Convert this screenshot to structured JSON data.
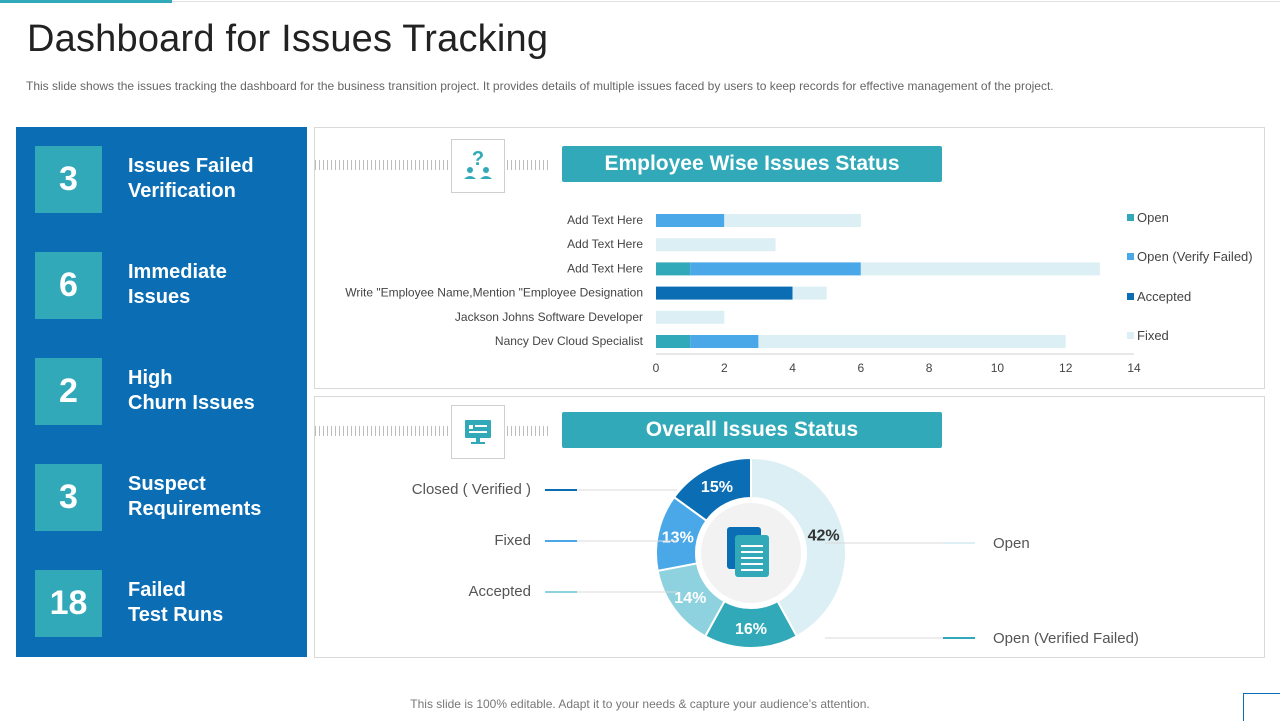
{
  "header": {
    "title": "Dashboard for Issues Tracking",
    "description": "This slide shows the issues tracking the dashboard for the business transition project. It provides details of multiple issues faced by users to keep records for effective  management  of the project."
  },
  "kpis": [
    {
      "value": "3",
      "label": "Issues Failed\nVerification"
    },
    {
      "value": "6",
      "label": "Immediate\nIssues"
    },
    {
      "value": "2",
      "label": "High\nChurn Issues"
    },
    {
      "value": "3",
      "label": "Suspect\nRequirements"
    },
    {
      "value": "18",
      "label": "Failed\nTest Runs"
    }
  ],
  "employee_card": {
    "title": "Employee Wise Issues Status",
    "icon": "question-people-icon"
  },
  "overall_card": {
    "title": "Overall Issues Status",
    "icon": "monitor-icon"
  },
  "footer": {
    "text": "This slide is 100% editable. Adapt it to your needs & capture your audience’s attention."
  },
  "colors": {
    "open": "#31a9b8",
    "open_verify_failed": "#4aa8e8",
    "accepted": "#0b6eb5",
    "fixed": "#dbeff4"
  },
  "chart_data": [
    {
      "type": "bar",
      "orientation": "horizontal",
      "stacked": true,
      "categories": [
        "Add Text Here",
        "Add Text Here",
        "Add Text Here",
        "Write \"Employee Name,Mention \"Employee Designation",
        "Jackson Johns Software Developer",
        "Nancy Dev Cloud Specialist"
      ],
      "series": [
        {
          "name": "Open",
          "values": [
            0,
            0,
            1,
            0,
            0,
            1
          ]
        },
        {
          "name": "Open (Verify Failed)",
          "values": [
            2,
            0,
            5,
            0,
            0,
            2
          ]
        },
        {
          "name": "Accepted",
          "values": [
            0,
            0,
            0,
            4,
            0,
            0
          ]
        },
        {
          "name": "Fixed",
          "values": [
            4,
            3.5,
            7,
            1,
            2,
            9
          ]
        }
      ],
      "xlim": [
        0,
        14
      ],
      "xticks": [
        "0",
        "2",
        "4",
        "6",
        "8",
        "10",
        "12",
        "14"
      ],
      "legend_position": "right"
    },
    {
      "type": "pie",
      "donut": true,
      "slices": [
        {
          "label": "Open",
          "value": 42,
          "text": "42%"
        },
        {
          "label": "Open (Verified Failed)",
          "value": 16,
          "text": "16%"
        },
        {
          "label": "Accepted",
          "value": 14,
          "text": "14%"
        },
        {
          "label": "Fixed",
          "value": 13,
          "text": "13%"
        },
        {
          "label": "Closed ( Verified )",
          "value": 15,
          "text": "15%"
        }
      ]
    }
  ]
}
